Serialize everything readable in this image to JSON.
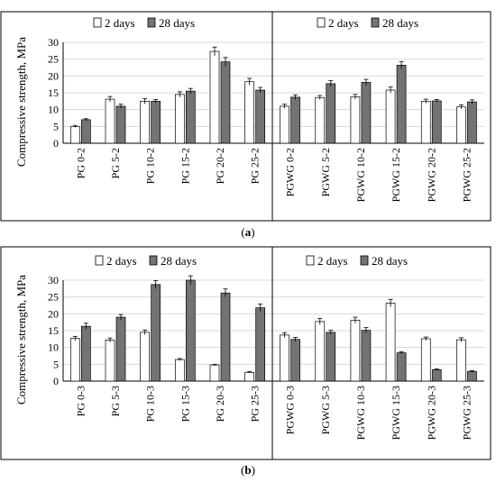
{
  "colors": {
    "day2_fill": "#ffffff",
    "day28_fill": "#737373",
    "bar_stroke": "#000000",
    "frame": "#000000",
    "grid": "#d9d9d9"
  },
  "captions": {
    "a": "a",
    "b": "b"
  },
  "chart_data": [
    {
      "id": "a",
      "type": "bar",
      "ylabel": "Compressive strength, MPa",
      "ylim": [
        0,
        30
      ],
      "yticks": [
        0,
        5,
        10,
        15,
        20,
        25,
        30
      ],
      "grid": true,
      "legend_position": "top, one per group",
      "groups": [
        {
          "legend": [
            "2 days",
            "28 days"
          ],
          "categories": [
            "PG 0-2",
            "PG 5-2",
            "PG 10-2",
            "PG 15-2",
            "PG 20-2",
            "PG 25-2"
          ],
          "series": [
            {
              "name": "2 days",
              "values": [
                5.0,
                13.1,
                12.5,
                14.5,
                27.3,
                18.3
              ],
              "errors": [
                0.3,
                0.8,
                0.8,
                0.8,
                1.3,
                1.0
              ]
            },
            {
              "name": "28 days",
              "values": [
                7.0,
                11.0,
                12.5,
                15.5,
                24.2,
                15.8
              ],
              "errors": [
                0.3,
                0.6,
                0.5,
                0.8,
                1.3,
                0.8
              ]
            }
          ]
        },
        {
          "legend": [
            "2 days",
            "28 days"
          ],
          "categories": [
            "PGWG 0-2",
            "PGWG 5-2",
            "PGWG 10-2",
            "PGWG 15-2",
            "PGWG 20-2",
            "PGWG 25-2"
          ],
          "series": [
            {
              "name": "2 days",
              "values": [
                11.0,
                13.6,
                13.8,
                15.8,
                12.5,
                10.8
              ],
              "errors": [
                0.6,
                0.6,
                0.7,
                0.9,
                0.6,
                0.6
              ]
            },
            {
              "name": "28 days",
              "values": [
                13.7,
                17.7,
                18.1,
                23.2,
                12.6,
                12.3
              ],
              "errors": [
                0.7,
                0.9,
                0.9,
                1.1,
                0.4,
                0.6
              ]
            }
          ]
        }
      ]
    },
    {
      "id": "b",
      "type": "bar",
      "ylabel": "Compressive strength, MPa",
      "ylim": [
        0,
        30
      ],
      "yticks": [
        0,
        5,
        10,
        15,
        20,
        25,
        30
      ],
      "grid": true,
      "legend_position": "top, one per group",
      "groups": [
        {
          "legend": [
            "2 days",
            "28 days"
          ],
          "categories": [
            "PG 0-3",
            "PG 5-3",
            "PG 10-3",
            "PG 15-3",
            "PG 20-3",
            "PG 25-3"
          ],
          "series": [
            {
              "name": "2 days",
              "values": [
                12.7,
                12.2,
                14.5,
                6.4,
                4.8,
                2.6
              ],
              "errors": [
                0.6,
                0.6,
                0.7,
                0.3,
                0.2,
                0.2
              ]
            },
            {
              "name": "28 days",
              "values": [
                16.3,
                19.0,
                28.7,
                30.0,
                26.2,
                21.8
              ],
              "errors": [
                0.9,
                0.8,
                1.2,
                1.3,
                1.2,
                1.1
              ]
            }
          ]
        },
        {
          "legend": [
            "2 days",
            "28 days"
          ],
          "categories": [
            "PGWG 0-3",
            "PGWG 5-3",
            "PGWG 10-3",
            "PGWG 15-3",
            "PGWG 20-3",
            "PGWG 25-3"
          ],
          "series": [
            {
              "name": "2 days",
              "values": [
                13.7,
                17.7,
                18.1,
                23.2,
                12.6,
                12.3
              ],
              "errors": [
                0.7,
                0.9,
                0.9,
                1.1,
                0.5,
                0.6
              ]
            },
            {
              "name": "28 days",
              "values": [
                12.4,
                14.5,
                15.1,
                8.4,
                3.4,
                2.9
              ],
              "errors": [
                0.6,
                0.6,
                0.8,
                0.3,
                0.2,
                0.2
              ]
            }
          ]
        }
      ]
    }
  ]
}
